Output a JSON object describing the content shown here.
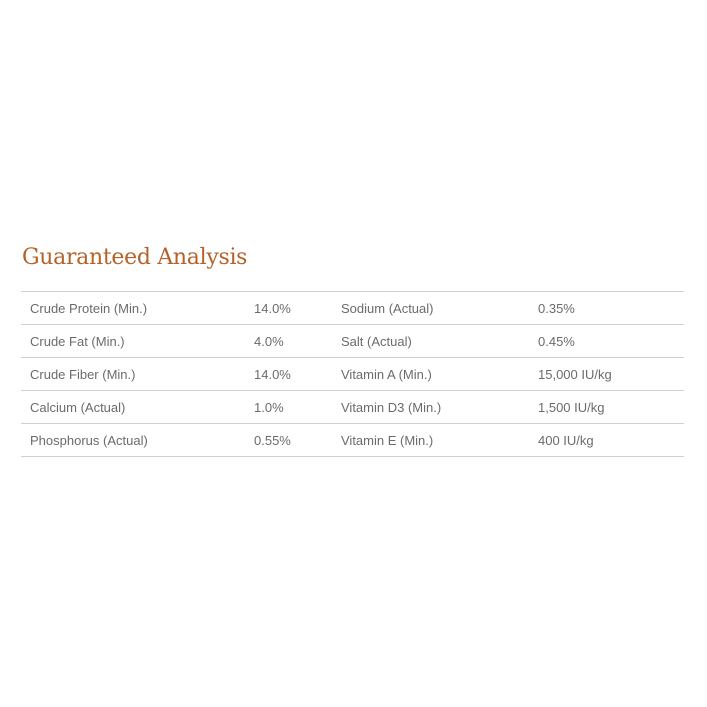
{
  "title": "Guaranteed Analysis",
  "rows": [
    {
      "label1": "Crude Protein (Min.)",
      "value1": "14.0%",
      "label2": "Sodium (Actual)",
      "value2": "0.35%"
    },
    {
      "label1": "Crude Fat (Min.)",
      "value1": "4.0%",
      "label2": "Salt (Actual)",
      "value2": "0.45%"
    },
    {
      "label1": "Crude Fiber (Min.)",
      "value1": "14.0%",
      "label2": "Vitamin A (Min.)",
      "value2": "15,000 IU/kg"
    },
    {
      "label1": "Calcium (Actual)",
      "value1": "1.0%",
      "label2": "Vitamin D3 (Min.)",
      "value2": "1,500 IU/kg"
    },
    {
      "label1": "Phosphorus (Actual)",
      "value1": "0.55%",
      "label2": "Vitamin E (Min.)",
      "value2": "400 IU/kg"
    }
  ]
}
